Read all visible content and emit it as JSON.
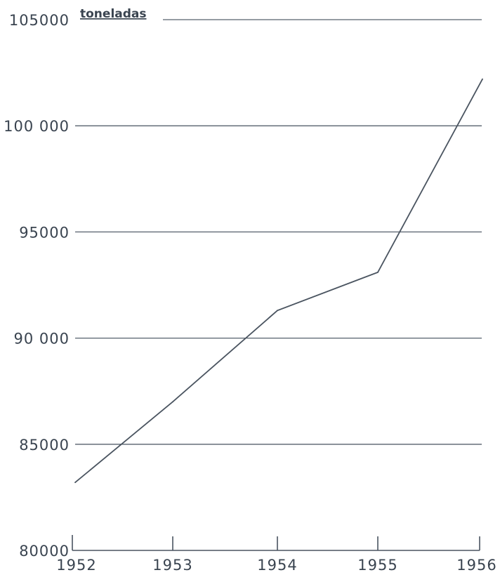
{
  "chart_data": {
    "type": "line",
    "unit_label": "toneladas",
    "x": [
      "1952",
      "1953",
      "1954",
      "1955",
      "1956"
    ],
    "series": [
      {
        "values": [
          83200,
          87000,
          91300,
          93100,
          102200
        ]
      }
    ],
    "ylim": [
      80000,
      105000
    ],
    "y_ticks": [
      80000,
      85000,
      90000,
      95000,
      100000,
      105000
    ],
    "y_tick_labels": [
      "80000",
      "85000",
      "90 000",
      "95000",
      "100 000",
      "105000"
    ],
    "x_tick_labels": [
      "1952",
      "1953",
      "1954",
      "1955",
      "1956"
    ],
    "grid": true,
    "colors": {
      "line": "#4a5460",
      "grid": "#56606c",
      "text": "#3a4450"
    }
  }
}
